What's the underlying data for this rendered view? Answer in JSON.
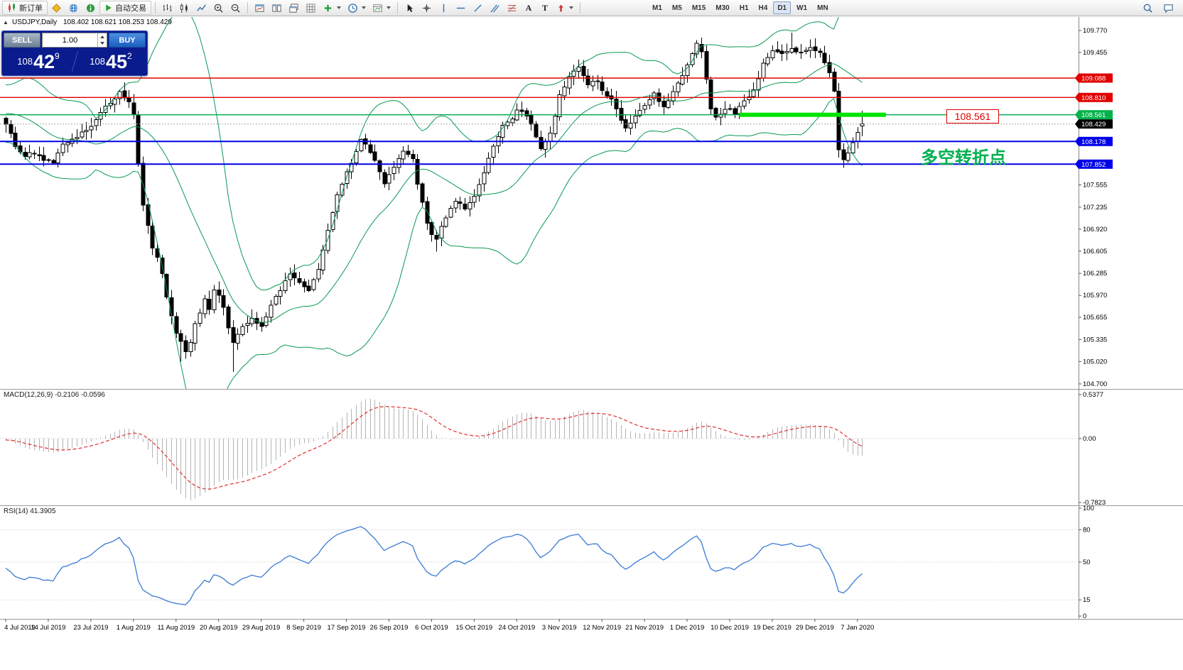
{
  "toolbar": {
    "new_order_label": "新订单",
    "autotrading_label": "自动交易",
    "timeframes": [
      "M1",
      "M5",
      "M15",
      "M30",
      "H1",
      "H4",
      "D1",
      "W1",
      "MN"
    ],
    "active_timeframe": "D1",
    "text_tool_glyph": "A",
    "label_tool_glyph": "T"
  },
  "chart": {
    "title": "USDJPY,Daily",
    "ohlc_text": "108.402 108.621 108.253 108.429",
    "collapse_glyph": "▲"
  },
  "trade_panel": {
    "sell_label": "SELL",
    "buy_label": "BUY",
    "volume": "1.00",
    "sell_price": {
      "base": "108",
      "pips": "42",
      "point": "9"
    },
    "buy_price": {
      "base": "108",
      "pips": "45",
      "point": "2"
    }
  },
  "chart_data": {
    "type": "candlestick",
    "symbol": "USDJPY",
    "timeframe": "Daily",
    "current_bar": {
      "open": 108.402,
      "high": 108.621,
      "low": 108.253,
      "close": 108.429
    },
    "bars_total": 182,
    "candle_colors": {
      "bull_fill": "#ffffff",
      "bear_fill": "#000000",
      "outline": "#000000"
    },
    "y_axis_ticks": [
      "109.770",
      "109.455",
      "107.555",
      "107.235",
      "106.920",
      "106.605",
      "106.285",
      "105.970",
      "105.655",
      "105.335",
      "105.020",
      "104.700"
    ],
    "price_tags": [
      {
        "label": "109.088",
        "color": "#e10000"
      },
      {
        "label": "108.810",
        "color": "#e10000"
      },
      {
        "label": "108.561",
        "color": "#00b24a"
      },
      {
        "label": "108.429",
        "color": "#000000"
      },
      {
        "label": "108.178",
        "color": "#0000e8"
      },
      {
        "label": "107.852",
        "color": "#0000e8"
      }
    ],
    "horizontal_lines": [
      {
        "price": 109.088,
        "color": "#e10000",
        "width": 1.4
      },
      {
        "price": 108.81,
        "color": "#e10000",
        "width": 1.4
      },
      {
        "price": 108.561,
        "color": "#00a651",
        "width": 1.4,
        "segment": {
          "from_bar": 155,
          "to_bar": 186,
          "color": "#00e400"
        }
      },
      {
        "price": 108.178,
        "color": "#0000e8",
        "width": 2
      },
      {
        "price": 107.852,
        "color": "#0000e8",
        "width": 2
      }
    ],
    "x_axis_dates": [
      "4 Jul 2019",
      "14 Jul 2019",
      "23 Jul 2019",
      "1 Aug 2019",
      "11 Aug 2019",
      "20 Aug 2019",
      "29 Aug 2019",
      "8 Sep 2019",
      "17 Sep 2019",
      "26 Sep 2019",
      "6 Oct 2019",
      "15 Oct 2019",
      "24 Oct 2019",
      "3 Nov 2019",
      "12 Nov 2019",
      "21 Nov 2019",
      "1 Dec 2019",
      "10 Dec 2019",
      "19 Dec 2019",
      "29 Dec 2019",
      "7 Jan 2020"
    ],
    "close_path_anchors": [
      [
        0,
        108.45
      ],
      [
        2,
        108.12
      ],
      [
        4,
        107.97
      ],
      [
        6,
        108.02
      ],
      [
        8,
        107.9
      ],
      [
        10,
        107.88
      ],
      [
        12,
        108.12
      ],
      [
        14,
        108.22
      ],
      [
        16,
        108.3
      ],
      [
        18,
        108.38
      ],
      [
        20,
        108.6
      ],
      [
        22,
        108.72
      ],
      [
        24,
        108.88
      ],
      [
        25,
        108.8
      ],
      [
        26,
        108.72
      ],
      [
        27,
        108.55
      ],
      [
        28,
        107.85
      ],
      [
        29,
        107.25
      ],
      [
        30,
        106.95
      ],
      [
        31,
        106.65
      ],
      [
        32,
        106.5
      ],
      [
        33,
        106.28
      ],
      [
        34,
        105.95
      ],
      [
        35,
        105.7
      ],
      [
        36,
        105.45
      ],
      [
        37,
        105.3
      ],
      [
        38,
        105.15
      ],
      [
        39,
        105.3
      ],
      [
        40,
        105.55
      ],
      [
        41,
        105.7
      ],
      [
        42,
        105.9
      ],
      [
        43,
        105.75
      ],
      [
        44,
        106.05
      ],
      [
        45,
        105.95
      ],
      [
        46,
        105.8
      ],
      [
        47,
        105.5
      ],
      [
        48,
        105.3
      ],
      [
        49,
        105.42
      ],
      [
        50,
        105.5
      ],
      [
        52,
        105.62
      ],
      [
        54,
        105.52
      ],
      [
        56,
        105.82
      ],
      [
        58,
        106.05
      ],
      [
        60,
        106.28
      ],
      [
        62,
        106.18
      ],
      [
        64,
        106.05
      ],
      [
        66,
        106.35
      ],
      [
        68,
        106.9
      ],
      [
        70,
        107.4
      ],
      [
        72,
        107.72
      ],
      [
        74,
        108.05
      ],
      [
        75,
        108.22
      ],
      [
        76,
        108.12
      ],
      [
        78,
        107.9
      ],
      [
        80,
        107.58
      ],
      [
        82,
        107.8
      ],
      [
        84,
        108.05
      ],
      [
        86,
        107.92
      ],
      [
        87,
        107.55
      ],
      [
        88,
        107.3
      ],
      [
        89,
        106.98
      ],
      [
        90,
        106.85
      ],
      [
        91,
        106.78
      ],
      [
        93,
        107.1
      ],
      [
        95,
        107.32
      ],
      [
        97,
        107.22
      ],
      [
        99,
        107.38
      ],
      [
        101,
        107.72
      ],
      [
        103,
        108.12
      ],
      [
        105,
        108.42
      ],
      [
        107,
        108.48
      ],
      [
        108,
        108.62
      ],
      [
        110,
        108.55
      ],
      [
        111,
        108.42
      ],
      [
        113,
        108.08
      ],
      [
        115,
        108.28
      ],
      [
        117,
        108.85
      ],
      [
        119,
        109.12
      ],
      [
        121,
        109.22
      ],
      [
        123,
        109.0
      ],
      [
        125,
        109.06
      ],
      [
        126,
        108.92
      ],
      [
        128,
        108.78
      ],
      [
        130,
        108.48
      ],
      [
        131,
        108.35
      ],
      [
        133,
        108.55
      ],
      [
        135,
        108.68
      ],
      [
        137,
        108.85
      ],
      [
        139,
        108.68
      ],
      [
        141,
        108.88
      ],
      [
        143,
        109.12
      ],
      [
        145,
        109.42
      ],
      [
        146,
        109.58
      ],
      [
        147,
        109.48
      ],
      [
        148,
        109.05
      ],
      [
        149,
        108.65
      ],
      [
        150,
        108.52
      ],
      [
        152,
        108.66
      ],
      [
        154,
        108.58
      ],
      [
        156,
        108.75
      ],
      [
        158,
        108.92
      ],
      [
        160,
        109.28
      ],
      [
        162,
        109.5
      ],
      [
        164,
        109.42
      ],
      [
        166,
        109.52
      ],
      [
        168,
        109.46
      ],
      [
        170,
        109.52
      ],
      [
        172,
        109.48
      ],
      [
        174,
        109.18
      ],
      [
        175,
        108.88
      ],
      [
        176,
        108.08
      ],
      [
        177,
        107.92
      ],
      [
        178,
        108.02
      ],
      [
        179,
        108.18
      ],
      [
        180,
        108.32
      ],
      [
        181,
        108.429
      ]
    ],
    "special_lows": [
      [
        37,
        105.02
      ],
      [
        48,
        104.87
      ],
      [
        91,
        106.6
      ],
      [
        177,
        107.8
      ]
    ],
    "special_highs": [
      [
        121,
        109.29
      ],
      [
        147,
        109.67
      ],
      [
        166,
        109.74
      ]
    ],
    "indicators": {
      "bollinger": {
        "period": 20,
        "deviation": 2,
        "color": "#089a52"
      },
      "macd": {
        "label": "MACD(12,26,9)",
        "values_text": "-0.2106 -0.0596",
        "scale_max": "0.5377",
        "scale_zero": "0.00",
        "scale_min": "-0.7823",
        "histogram_color": "#b4b4b4",
        "signal_color": "#e03030"
      },
      "rsi": {
        "label": "RSI(14)",
        "value_text": "41.3905",
        "scale": [
          "100",
          "80",
          "50",
          "15",
          "0"
        ],
        "line_color": "#3a7bd5"
      }
    },
    "annotations": {
      "price_callout": "108.561",
      "pivot_text": "多空转折点",
      "pivot_color": "#00b050"
    }
  }
}
